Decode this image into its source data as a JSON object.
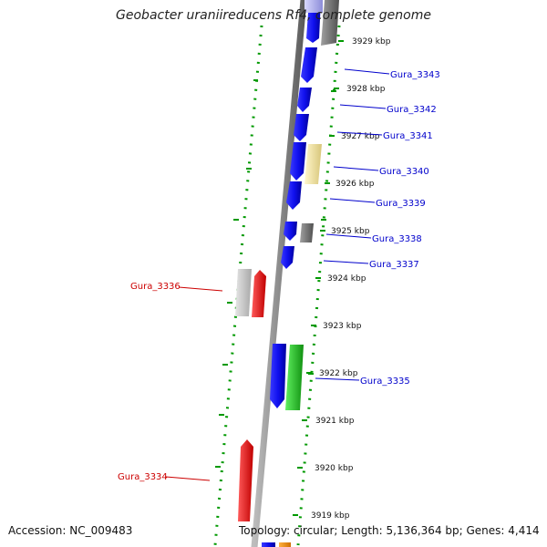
{
  "title": "Geobacter uraniireducens Rf4, complete genome",
  "accession": "Accession: NC_009483",
  "topology": "Topology: circular; Length: 5,136,364 bp; Genes: 4,414",
  "ruler": [
    "3929 kbp",
    "3928 kbp",
    "3927 kbp",
    "3926 kbp",
    "3925 kbp",
    "3924 kbp",
    "3923 kbp",
    "3922 kbp",
    "3921 kbp",
    "3920 kbp",
    "3919 kbp"
  ],
  "genes": [
    {
      "name": "Gura_3343",
      "strand": "plus",
      "color": "#0000cc"
    },
    {
      "name": "Gura_3342",
      "strand": "plus",
      "color": "#0000cc"
    },
    {
      "name": "Gura_3341",
      "strand": "plus",
      "color": "#0000cc"
    },
    {
      "name": "Gura_3340",
      "strand": "plus",
      "color": "#0000cc"
    },
    {
      "name": "Gura_3339",
      "strand": "plus",
      "color": "#0000cc"
    },
    {
      "name": "Gura_3338",
      "strand": "plus",
      "color": "#0000cc"
    },
    {
      "name": "Gura_3337",
      "strand": "plus",
      "color": "#0000cc"
    },
    {
      "name": "Gura_3336",
      "strand": "minus",
      "color": "#cc0000"
    },
    {
      "name": "Gura_3335",
      "strand": "plus",
      "color": "#0000cc"
    },
    {
      "name": "Gura_3334",
      "strand": "minus",
      "color": "#cc0000"
    }
  ],
  "colors": {
    "blue_gene": "#1414f0",
    "gray_gene": "#7a7a7a",
    "light_gray_gene": "#c4c4c4",
    "yellow_gene": "#f0e2a0",
    "green_gene": "#28cc28",
    "red_gene": "#ff1010",
    "orange_gene": "#ff9000",
    "gc_dots": "#009900",
    "backbone": "#8a8a8a"
  }
}
